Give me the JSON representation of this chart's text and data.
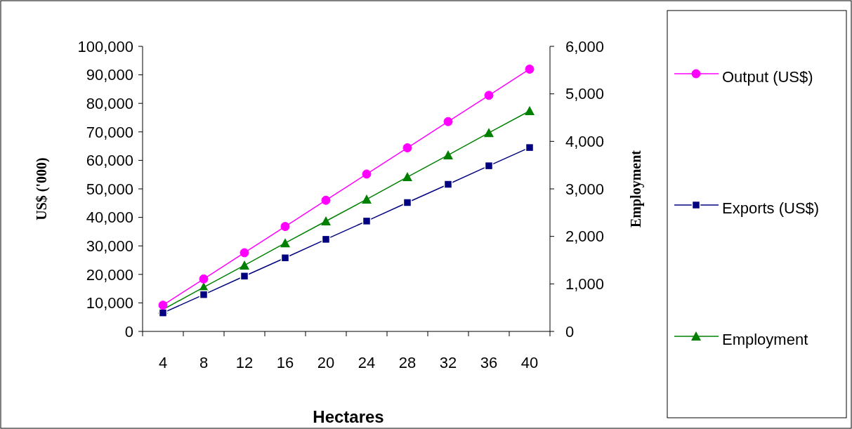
{
  "chart_data": {
    "type": "line",
    "xlabel": "Hectares",
    "ylabel": "US$ ('000)",
    "y2label": "Employment",
    "categories": [
      "4",
      "8",
      "12",
      "16",
      "20",
      "24",
      "28",
      "32",
      "36",
      "40"
    ],
    "series": [
      {
        "name": "Output (US$)",
        "color": "#ff00ff",
        "marker": "circle",
        "values": [
          9200,
          18400,
          27600,
          36800,
          46000,
          55200,
          64400,
          73600,
          82800,
          92000
        ]
      },
      {
        "name": "Exports (US$)",
        "color": "#000080",
        "marker": "square",
        "values": [
          6500,
          12900,
          19400,
          25800,
          32300,
          38700,
          45200,
          51600,
          58100,
          64500
        ]
      },
      {
        "name": "Employment",
        "color": "#008000",
        "marker": "triangle",
        "axis": "y2",
        "values": [
          460,
          930,
          1390,
          1860,
          2320,
          2780,
          3250,
          3710,
          4180,
          4640
        ]
      }
    ],
    "ylim": [
      0,
      100000
    ],
    "yticks": [
      {
        "value": 0,
        "label": "0"
      },
      {
        "value": 10000,
        "label": "10,000"
      },
      {
        "value": 20000,
        "label": "20,000"
      },
      {
        "value": 30000,
        "label": "30,000"
      },
      {
        "value": 40000,
        "label": "40,000"
      },
      {
        "value": 50000,
        "label": "50,000"
      },
      {
        "value": 60000,
        "label": "60,000"
      },
      {
        "value": 70000,
        "label": "70,000"
      },
      {
        "value": 80000,
        "label": "80,000"
      },
      {
        "value": 90000,
        "label": "90,000"
      },
      {
        "value": 100000,
        "label": "100,000"
      }
    ],
    "y2lim": [
      0,
      6000
    ],
    "y2ticks": [
      {
        "value": 0,
        "label": "0"
      },
      {
        "value": 1000,
        "label": "1,000"
      },
      {
        "value": 2000,
        "label": "2,000"
      },
      {
        "value": 3000,
        "label": "3,000"
      },
      {
        "value": 4000,
        "label": "4,000"
      },
      {
        "value": 5000,
        "label": "5,000"
      },
      {
        "value": 6000,
        "label": "6,000"
      }
    ],
    "legend": "right",
    "grid": false
  }
}
